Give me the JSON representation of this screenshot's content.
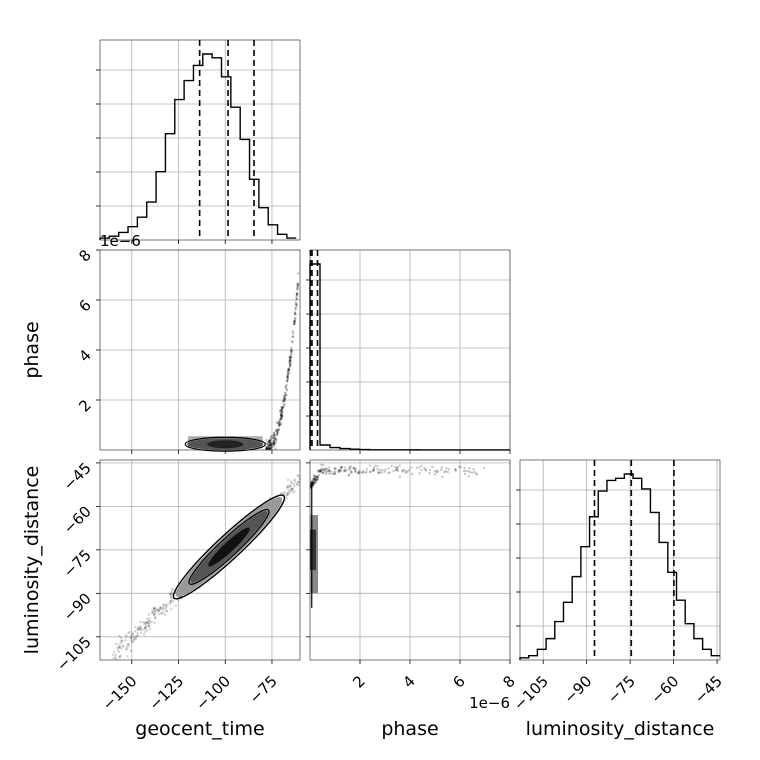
{
  "chart_data": {
    "type": "corner",
    "parameters": [
      "geocent_time",
      "phase",
      "luminosity_distance"
    ],
    "grid": true,
    "axes": {
      "geocent_time": {
        "range": [
          -167,
          -60
        ],
        "ticks": [
          -150,
          -125,
          -100,
          -75
        ],
        "tick_labels": [
          "−150",
          "−125",
          "−100",
          "−75"
        ]
      },
      "phase": {
        "range": [
          0,
          8
        ],
        "ticks": [
          2,
          4,
          6,
          8
        ],
        "tick_labels": [
          "2",
          "4",
          "6",
          "8"
        ],
        "offset_text": "1e−6"
      },
      "luminosity_distance": {
        "range": [
          -113,
          -44
        ],
        "ticks": [
          -105,
          -90,
          -75,
          -60,
          -45
        ],
        "tick_labels": [
          "−105",
          "−90",
          "−75",
          "−60",
          "−45"
        ]
      }
    },
    "diagonal": [
      {
        "param": "geocent_time",
        "type": "step-histogram",
        "quantiles": [
          -113.7,
          -98.5,
          -84.6
        ],
        "bin_edges": [
          -167,
          -162,
          -157,
          -152,
          -147,
          -142,
          -137,
          -132,
          -127,
          -122,
          -117,
          -112,
          -107,
          -102,
          -97,
          -92,
          -87,
          -82,
          -77,
          -72,
          -67,
          -62
        ],
        "counts": [
          0.01,
          0.02,
          0.04,
          0.07,
          0.12,
          0.2,
          0.36,
          0.56,
          0.74,
          0.84,
          0.92,
          0.98,
          0.96,
          0.86,
          0.7,
          0.53,
          0.32,
          0.17,
          0.08,
          0.03,
          0.01
        ]
      },
      {
        "param": "phase",
        "type": "step-histogram",
        "quantiles": [
          0.02,
          0.08,
          0.3
        ],
        "bin_edges": [
          0,
          0.4,
          0.8,
          1.2,
          1.6,
          2.0,
          2.4,
          2.8,
          3.2,
          3.6,
          4.0,
          4.4,
          4.8,
          5.2,
          5.6,
          6.0,
          6.4,
          6.8,
          7.2,
          7.6,
          8.0
        ],
        "counts": [
          0.93,
          0.025,
          0.012,
          0.007,
          0.004,
          0.002,
          0.001,
          0.001,
          0.001,
          0.0008,
          0.0006,
          0.0005,
          0.0004,
          0.0003,
          0.0002,
          0.0002,
          0.0001,
          0.0001,
          0.0001,
          0.0001
        ]
      },
      {
        "param": "luminosity_distance",
        "type": "step-histogram",
        "quantiles": [
          -87.3,
          -74.6,
          -59.9
        ],
        "bin_edges": [
          -113,
          -110,
          -107,
          -104,
          -101,
          -98,
          -95,
          -92,
          -89,
          -86,
          -83,
          -80,
          -77,
          -74,
          -71,
          -68,
          -65,
          -62,
          -59,
          -56,
          -53,
          -50,
          -47,
          -44
        ],
        "counts": [
          0.01,
          0.02,
          0.05,
          0.1,
          0.18,
          0.27,
          0.39,
          0.53,
          0.67,
          0.79,
          0.84,
          0.85,
          0.87,
          0.85,
          0.8,
          0.69,
          0.55,
          0.41,
          0.28,
          0.17,
          0.1,
          0.05,
          0.02
        ]
      }
    ],
    "pairs": [
      {
        "x": "geocent_time",
        "y": "phase",
        "contour_center": [
          -100,
          0.07
        ],
        "density_notes": "samples concentrated near phase 0; tail rising steeply from geocent_time ≈ -78 to ≈ -61"
      },
      {
        "x": "geocent_time",
        "y": "luminosity_distance",
        "contour_center": [
          -98,
          -74
        ],
        "correlation": "strong positive, slope ≈ 0.6"
      },
      {
        "x": "phase",
        "y": "luminosity_distance",
        "contour_center": [
          0.03,
          -73
        ],
        "density_notes": "samples concentrated near phase 0; tail at luminosity_distance ≈ -48 extending to phase ≈ 7"
      }
    ]
  }
}
